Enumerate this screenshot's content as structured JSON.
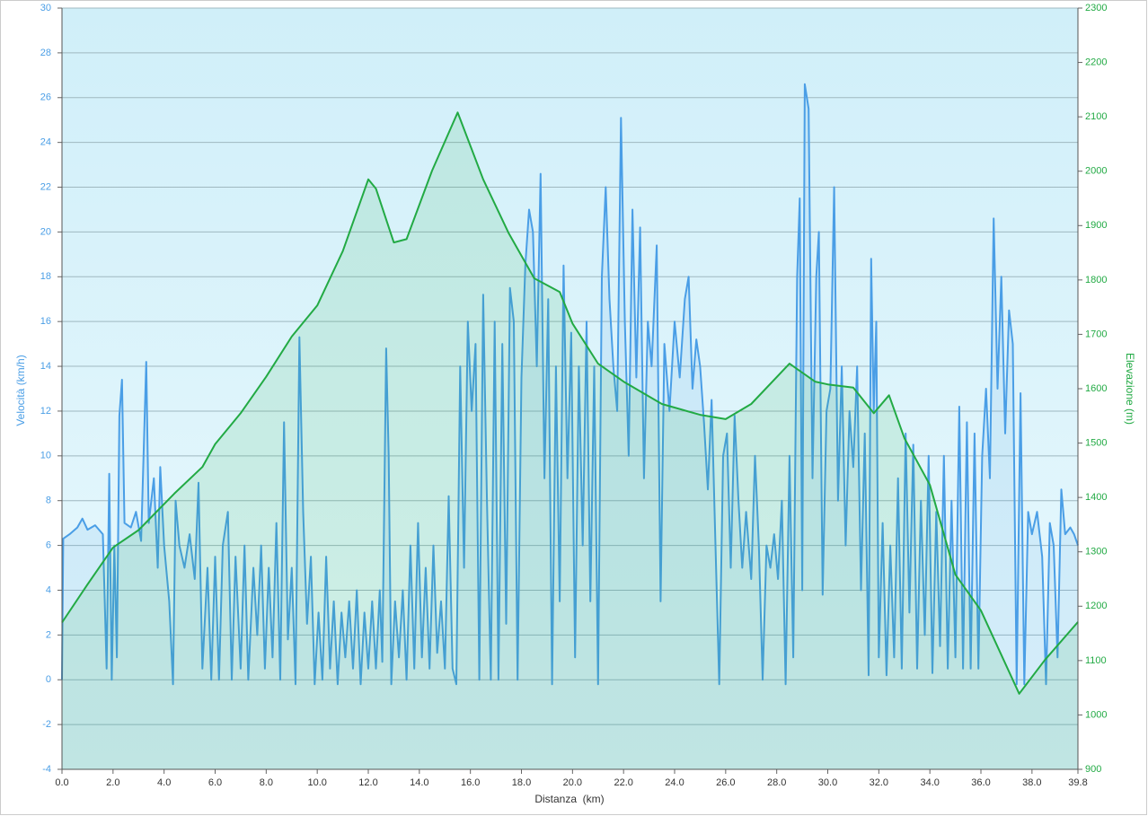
{
  "chart_data": {
    "type": "line",
    "xlabel": "Distanza  (km)",
    "ylabel": "Velocità (km/h)",
    "y2label": "Elevazione (m)",
    "grid": true,
    "xlim": [
      0,
      39.8
    ],
    "ylim": [
      -4,
      30
    ],
    "y2lim": [
      900,
      2300
    ],
    "xticks": [
      {
        "value": 0,
        "label": "0.0"
      },
      {
        "value": 2,
        "label": "2.0"
      },
      {
        "value": 4,
        "label": "4.0"
      },
      {
        "value": 6,
        "label": "6.0"
      },
      {
        "value": 8,
        "label": "8.0"
      },
      {
        "value": 10,
        "label": "10.0"
      },
      {
        "value": 12,
        "label": "12.0"
      },
      {
        "value": 14,
        "label": "14.0"
      },
      {
        "value": 16,
        "label": "16.0"
      },
      {
        "value": 18,
        "label": "18.0"
      },
      {
        "value": 20,
        "label": "20.0"
      },
      {
        "value": 22,
        "label": "22.0"
      },
      {
        "value": 24,
        "label": "24.0"
      },
      {
        "value": 26,
        "label": "26.0"
      },
      {
        "value": 28,
        "label": "28.0"
      },
      {
        "value": 30,
        "label": "30.0"
      },
      {
        "value": 32,
        "label": "32.0"
      },
      {
        "value": 34,
        "label": "34.0"
      },
      {
        "value": 36,
        "label": "36.0"
      },
      {
        "value": 38,
        "label": "38.0"
      },
      {
        "value": 39.8,
        "label": "39.8"
      }
    ],
    "yticks": [
      -4,
      -2,
      0,
      2,
      4,
      6,
      8,
      10,
      12,
      14,
      16,
      18,
      20,
      22,
      24,
      26,
      28,
      30
    ],
    "y2ticks": [
      900,
      1000,
      1100,
      1200,
      1300,
      1400,
      1500,
      1600,
      1700,
      1800,
      1900,
      2000,
      2100,
      2200,
      2300
    ],
    "series": [
      {
        "name": "Velocità",
        "axis": "y",
        "color": "#4a9ee6",
        "x": [
          0.0,
          0.05,
          0.3,
          0.6,
          0.8,
          1.0,
          1.3,
          1.6,
          1.75,
          1.85,
          1.95,
          2.05,
          2.15,
          2.25,
          2.35,
          2.45,
          2.7,
          2.9,
          3.1,
          3.3,
          3.4,
          3.6,
          3.75,
          3.85,
          4.0,
          4.2,
          4.35,
          4.45,
          4.6,
          4.8,
          5.0,
          5.2,
          5.35,
          5.5,
          5.7,
          5.85,
          6.0,
          6.15,
          6.3,
          6.5,
          6.65,
          6.8,
          7.0,
          7.15,
          7.3,
          7.5,
          7.65,
          7.8,
          7.95,
          8.1,
          8.25,
          8.4,
          8.55,
          8.7,
          8.85,
          9.0,
          9.15,
          9.3,
          9.45,
          9.6,
          9.75,
          9.9,
          10.05,
          10.2,
          10.35,
          10.5,
          10.65,
          10.8,
          10.95,
          11.1,
          11.25,
          11.4,
          11.55,
          11.7,
          11.85,
          12.0,
          12.15,
          12.3,
          12.45,
          12.55,
          12.7,
          12.8,
          12.9,
          13.05,
          13.2,
          13.35,
          13.5,
          13.65,
          13.8,
          13.95,
          14.1,
          14.25,
          14.4,
          14.55,
          14.7,
          14.85,
          15.0,
          15.15,
          15.3,
          15.45,
          15.6,
          15.75,
          15.9,
          16.05,
          16.2,
          16.35,
          16.5,
          16.65,
          16.8,
          16.95,
          17.1,
          17.25,
          17.4,
          17.55,
          17.7,
          17.85,
          18.0,
          18.15,
          18.3,
          18.45,
          18.6,
          18.75,
          18.9,
          19.05,
          19.2,
          19.35,
          19.5,
          19.65,
          19.8,
          19.95,
          20.1,
          20.25,
          20.4,
          20.55,
          20.7,
          20.85,
          21.0,
          21.15,
          21.3,
          21.45,
          21.6,
          21.75,
          21.9,
          22.05,
          22.2,
          22.35,
          22.5,
          22.65,
          22.8,
          22.95,
          23.1,
          23.3,
          23.45,
          23.6,
          23.8,
          24.0,
          24.2,
          24.4,
          24.55,
          24.7,
          24.85,
          25.0,
          25.15,
          25.3,
          25.45,
          25.6,
          25.75,
          25.9,
          26.05,
          26.2,
          26.35,
          26.5,
          26.65,
          26.8,
          27.0,
          27.15,
          27.3,
          27.45,
          27.6,
          27.75,
          27.9,
          28.05,
          28.2,
          28.35,
          28.5,
          28.65,
          28.8,
          28.9,
          29.0,
          29.1,
          29.25,
          29.4,
          29.55,
          29.65,
          29.8,
          29.95,
          30.1,
          30.25,
          30.4,
          30.55,
          30.7,
          30.85,
          31.0,
          31.15,
          31.3,
          31.45,
          31.6,
          31.7,
          31.8,
          31.9,
          32.0,
          32.15,
          32.3,
          32.45,
          32.6,
          32.75,
          32.9,
          33.05,
          33.2,
          33.35,
          33.5,
          33.65,
          33.8,
          33.95,
          34.1,
          34.25,
          34.4,
          34.55,
          34.7,
          34.85,
          35.0,
          35.15,
          35.3,
          35.45,
          35.6,
          35.75,
          35.9,
          36.05,
          36.2,
          36.35,
          36.5,
          36.65,
          36.8,
          36.95,
          37.1,
          37.25,
          37.4,
          37.55,
          37.7,
          37.85,
          38.0,
          38.2,
          38.4,
          38.55,
          38.7,
          38.85,
          39.0,
          39.15,
          39.3,
          39.5,
          39.65,
          39.8
        ],
        "values": [
          0,
          6.3,
          6.5,
          6.8,
          7.2,
          6.7,
          6.9,
          6.5,
          0.5,
          9.2,
          0,
          6,
          1,
          11.8,
          13.4,
          7,
          6.8,
          7.5,
          6.2,
          14.2,
          7,
          9,
          5,
          9.5,
          6,
          3.5,
          -0.2,
          8,
          6,
          5,
          6.5,
          4.5,
          8.8,
          0.5,
          5,
          0,
          5.5,
          0,
          6,
          7.5,
          0,
          5.5,
          0.5,
          6,
          0,
          5,
          2,
          6,
          0.5,
          5,
          1,
          7,
          0,
          11.5,
          1.8,
          5,
          -0.2,
          15.3,
          7.5,
          2.5,
          5.5,
          -0.2,
          3,
          0,
          5.5,
          0.5,
          3.5,
          -0.2,
          3,
          1,
          3.5,
          0.5,
          4,
          -0.2,
          3,
          0.5,
          3.5,
          0.5,
          4,
          0.8,
          14.8,
          10,
          -0.2,
          3.5,
          1,
          4,
          0,
          6,
          0.5,
          7,
          1,
          5,
          0.5,
          6,
          1.2,
          3.5,
          0.5,
          8.2,
          0.5,
          -0.2,
          14,
          5,
          16,
          12,
          15,
          0,
          17.2,
          8,
          0,
          16,
          0,
          15,
          2.5,
          17.5,
          16,
          0,
          13.5,
          18.5,
          21,
          20,
          14,
          22.6,
          9,
          17,
          -0.2,
          14,
          3.5,
          18.5,
          9,
          15.5,
          1,
          14,
          6,
          16,
          3.5,
          14,
          -0.2,
          18,
          22,
          17,
          14,
          12,
          25.1,
          16,
          10,
          21,
          13.5,
          20.2,
          9,
          16,
          14,
          19.4,
          3.5,
          15,
          12,
          16,
          13.5,
          17,
          18,
          13,
          15.2,
          14,
          11.5,
          8.5,
          12.5,
          6,
          -0.2,
          10,
          11,
          5,
          11.8,
          8,
          5,
          7.5,
          4.5,
          10,
          6,
          0,
          6,
          5,
          6.5,
          4.5,
          8,
          -0.2,
          10,
          1,
          18,
          21.5,
          4,
          26.6,
          25.5,
          9,
          18,
          20,
          3.8,
          12,
          13,
          22,
          8,
          14,
          6,
          12,
          9.5,
          14,
          4,
          11,
          0.2,
          18.8,
          12,
          16,
          1,
          7,
          0.2,
          6,
          1,
          9,
          0.5,
          11,
          3,
          10.5,
          0.5,
          8,
          2,
          10,
          0.3,
          7.5,
          1.5,
          10,
          0.5,
          8,
          1,
          12.2,
          0.5,
          11.5,
          0.5,
          11,
          0.5,
          10,
          13,
          9,
          20.6,
          13,
          18,
          11,
          16.5,
          15,
          -0.2,
          12.8,
          -0.2,
          7.5,
          6.5,
          7.5,
          5.5,
          -0.2,
          7,
          6,
          1,
          8.5,
          6.5,
          6.8,
          6.5,
          6
        ]
      },
      {
        "name": "Elevazione",
        "axis": "y2",
        "color": "#22aa44",
        "x": [
          0,
          1,
          2,
          3,
          4.4,
          5.5,
          6,
          7,
          8,
          9,
          10,
          11,
          12,
          12.3,
          13,
          13.5,
          14.5,
          15.5,
          16.5,
          17.5,
          18.5,
          19.5,
          20,
          21,
          22,
          23.5,
          25,
          26,
          27,
          28.5,
          29.5,
          30,
          31,
          31.8,
          32.4,
          33,
          34,
          35,
          36,
          37.5,
          38.5,
          39.8
        ],
        "values": [
          1170,
          1240,
          1308,
          1340,
          1407,
          1456,
          1498,
          1555,
          1622,
          1696,
          1753,
          1853,
          1985,
          1968,
          1869,
          1875,
          2001,
          2108,
          1985,
          1886,
          1803,
          1778,
          1720,
          1646,
          1613,
          1572,
          1552,
          1544,
          1572,
          1646,
          1613,
          1608,
          1602,
          1555,
          1588,
          1509,
          1423,
          1258,
          1192,
          1039,
          1101,
          1171
        ]
      }
    ]
  }
}
